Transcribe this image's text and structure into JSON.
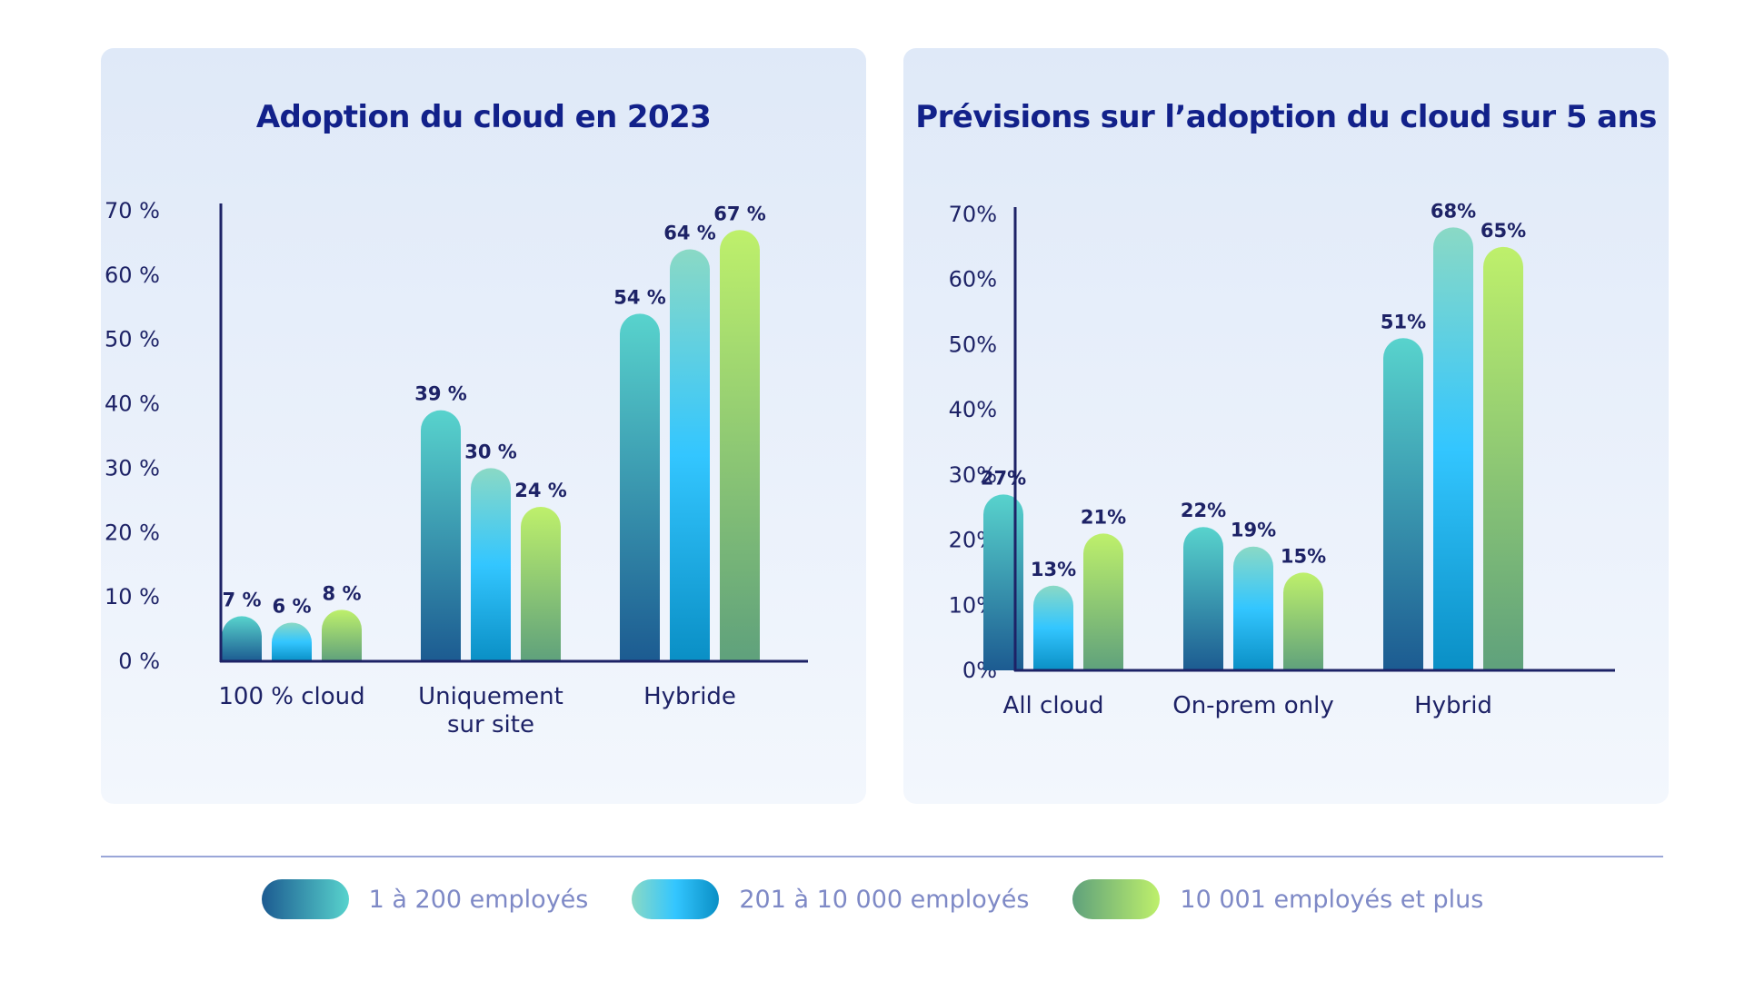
{
  "colors": {
    "title": "#12218a",
    "axis": "#1d2266",
    "text": "#1d2266",
    "legend_text": "#7e89c6",
    "divider": "#9aa6d8",
    "series_gradients": [
      [
        "#58d3cd",
        "#1c5b91"
      ],
      [
        "#8ad9c5",
        "#33c6ff",
        "#0a8fc5"
      ],
      [
        "#bef06b",
        "#5fa17c"
      ]
    ]
  },
  "legend": {
    "items": [
      {
        "label": "1 à 200 employés"
      },
      {
        "label": "201 à 10 000 employés"
      },
      {
        "label": "10 001 employés et plus"
      }
    ]
  },
  "chart_data": [
    {
      "type": "bar",
      "title": "Adoption du cloud en 2023",
      "categories": [
        [
          "100 % cloud"
        ],
        [
          "Uniquement",
          "sur site"
        ],
        [
          "Hybride"
        ]
      ],
      "ylim": [
        0,
        70
      ],
      "yticks": [
        "0 %",
        "10 %",
        "20 %",
        "30 %",
        "40 %",
        "50 %",
        "60 %",
        "70 %"
      ],
      "series": [
        {
          "name": "1 à 200 employés",
          "values": [
            7,
            39,
            54
          ],
          "labels": [
            "7 %",
            "39 %",
            "54 %"
          ]
        },
        {
          "name": "201 à 10 000 employés",
          "values": [
            6,
            30,
            64
          ],
          "labels": [
            "6 %",
            "30 %",
            "64 %"
          ]
        },
        {
          "name": "10 001 employés et plus",
          "values": [
            8,
            24,
            67
          ],
          "labels": [
            "8 %",
            "24 %",
            "67 %"
          ]
        }
      ],
      "grid": false,
      "legend": "bottom"
    },
    {
      "type": "bar",
      "title": "Prévisions sur l’adoption du cloud sur 5 ans",
      "categories": [
        [
          "All cloud"
        ],
        [
          "On-prem only"
        ],
        [
          "Hybrid"
        ]
      ],
      "ylim": [
        0,
        70
      ],
      "yticks": [
        "0%",
        "10%",
        "20%",
        "30%",
        "40%",
        "50%",
        "60%",
        "70%"
      ],
      "series": [
        {
          "name": "1 à 200 employés",
          "values": [
            27,
            22,
            51
          ],
          "labels": [
            "27%",
            "22%",
            "51%"
          ]
        },
        {
          "name": "201 à 10 000 employés",
          "values": [
            13,
            19,
            68
          ],
          "labels": [
            "13%",
            "19%",
            "68%"
          ]
        },
        {
          "name": "10 001 employés et plus",
          "values": [
            21,
            15,
            65
          ],
          "labels": [
            "21%",
            "15%",
            "65%"
          ]
        }
      ],
      "grid": false,
      "legend": "bottom"
    }
  ]
}
